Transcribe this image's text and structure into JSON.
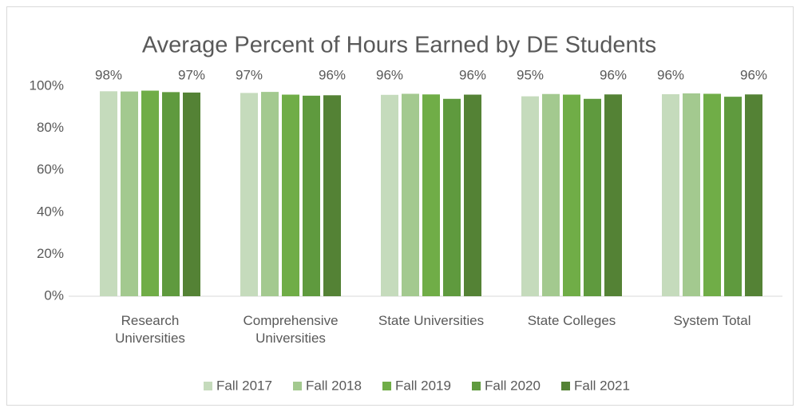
{
  "chart_data": {
    "type": "bar",
    "title": "Average Percent of Hours Earned by DE Students",
    "categories": [
      "Research Universities",
      "Comprehensive Universities",
      "State Universities",
      "State Colleges",
      "System Total"
    ],
    "series": [
      {
        "name": "Fall 2017",
        "color": "#c5dbbc",
        "values": [
          97.6,
          96.8,
          95.9,
          95.2,
          96.2
        ],
        "value_labels": [
          "98%",
          "97%",
          "96%",
          "95%",
          "96%"
        ]
      },
      {
        "name": "Fall 2018",
        "color": "#a3c98f",
        "values": [
          97.5,
          97.3,
          96.4,
          96.3,
          96.6
        ]
      },
      {
        "name": "Fall 2019",
        "color": "#70ad47",
        "values": [
          97.9,
          96.0,
          96.1,
          96.0,
          96.4
        ]
      },
      {
        "name": "Fall 2020",
        "color": "#5f9a3e",
        "values": [
          97.2,
          95.5,
          94.0,
          94.0,
          95.0
        ]
      },
      {
        "name": "Fall 2021",
        "color": "#548235",
        "values": [
          97.0,
          95.7,
          96.0,
          96.1,
          96.1
        ],
        "value_labels": [
          "97%",
          "96%",
          "96%",
          "96%",
          "96%"
        ]
      }
    ],
    "ylim": [
      0,
      100
    ],
    "yticks": [
      {
        "value": 0,
        "label": "0%"
      },
      {
        "value": 20,
        "label": "20%"
      },
      {
        "value": 40,
        "label": "40%"
      },
      {
        "value": 60,
        "label": "60%"
      },
      {
        "value": 80,
        "label": "80%"
      },
      {
        "value": 100,
        "label": "100%"
      }
    ],
    "legend": "bottom"
  }
}
